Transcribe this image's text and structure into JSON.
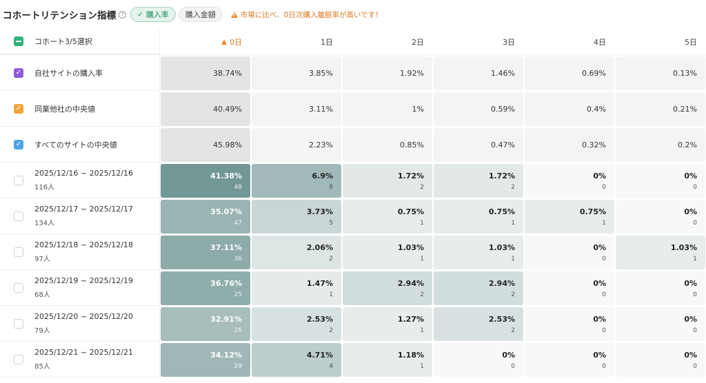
{
  "header": {
    "title": "コホートリテンション指標",
    "help_icon": "question-circle-icon",
    "tabs": [
      {
        "label": "購入率",
        "active": true,
        "icon": "check-icon"
      },
      {
        "label": "購入金額",
        "active": false
      }
    ],
    "warning": "市場に比べ、0日次購入離脱率が高いです！",
    "warning_icon": "warning-triangle-icon"
  },
  "table": {
    "select_label": "コホート3/5選択",
    "days": [
      "0日",
      "1日",
      "2日",
      "3日",
      "4日",
      "5日"
    ],
    "benchmarks": [
      {
        "label": "自社サイトの購入率",
        "checkbox_color": "#8f5cd6",
        "values": [
          "38.74%",
          "3.85%",
          "1.92%",
          "1.46%",
          "0.69%",
          "0.13%"
        ]
      },
      {
        "label": "同業他社の中央値",
        "checkbox_color": "#f0a63a",
        "values": [
          "40.49%",
          "3.11%",
          "1%",
          "0.59%",
          "0.4%",
          "0.21%"
        ]
      },
      {
        "label": "すべてのサイトの中央値",
        "checkbox_color": "#4ea4e6",
        "values": [
          "45.98%",
          "2.23%",
          "0.85%",
          "0.47%",
          "0.32%",
          "0.2%"
        ]
      }
    ],
    "cohorts": [
      {
        "range": "2025/12/16 ~ 2025/12/16",
        "users": "116人",
        "cells": [
          {
            "pct": "41.38%",
            "n": "48"
          },
          {
            "pct": "6.9%",
            "n": "8"
          },
          {
            "pct": "1.72%",
            "n": "2"
          },
          {
            "pct": "1.72%",
            "n": "2"
          },
          {
            "pct": "0%",
            "n": "0"
          },
          {
            "pct": "0%",
            "n": "0"
          }
        ]
      },
      {
        "range": "2025/12/17 ~ 2025/12/17",
        "users": "134人",
        "cells": [
          {
            "pct": "35.07%",
            "n": "47"
          },
          {
            "pct": "3.73%",
            "n": "5"
          },
          {
            "pct": "0.75%",
            "n": "1"
          },
          {
            "pct": "0.75%",
            "n": "1"
          },
          {
            "pct": "0.75%",
            "n": "1"
          },
          {
            "pct": "0%",
            "n": "0"
          }
        ]
      },
      {
        "range": "2025/12/18 ~ 2025/12/18",
        "users": "97人",
        "cells": [
          {
            "pct": "37.11%",
            "n": "36"
          },
          {
            "pct": "2.06%",
            "n": "2"
          },
          {
            "pct": "1.03%",
            "n": "1"
          },
          {
            "pct": "1.03%",
            "n": "1"
          },
          {
            "pct": "0%",
            "n": "0"
          },
          {
            "pct": "1.03%",
            "n": "1"
          }
        ]
      },
      {
        "range": "2025/12/19 ~ 2025/12/19",
        "users": "68人",
        "cells": [
          {
            "pct": "36.76%",
            "n": "25"
          },
          {
            "pct": "1.47%",
            "n": "1"
          },
          {
            "pct": "2.94%",
            "n": "2"
          },
          {
            "pct": "2.94%",
            "n": "2"
          },
          {
            "pct": "0%",
            "n": "0"
          },
          {
            "pct": "0%",
            "n": "0"
          }
        ]
      },
      {
        "range": "2025/12/20 ~ 2025/12/20",
        "users": "79人",
        "cells": [
          {
            "pct": "32.91%",
            "n": "26"
          },
          {
            "pct": "2.53%",
            "n": "2"
          },
          {
            "pct": "1.27%",
            "n": "1"
          },
          {
            "pct": "2.53%",
            "n": "2"
          },
          {
            "pct": "0%",
            "n": "0"
          },
          {
            "pct": "0%",
            "n": "0"
          }
        ]
      },
      {
        "range": "2025/12/21 ~ 2025/12/21",
        "users": "85人",
        "cells": [
          {
            "pct": "34.12%",
            "n": "29"
          },
          {
            "pct": "4.71%",
            "n": "4"
          },
          {
            "pct": "1.18%",
            "n": "1"
          },
          {
            "pct": "0%",
            "n": "0"
          },
          {
            "pct": "0%",
            "n": "0"
          },
          {
            "pct": "0%",
            "n": "0"
          }
        ]
      }
    ]
  },
  "colors": {
    "accent_green": "#2fb37b",
    "warning_orange": "#e0781f",
    "heat_max": "#6e9593",
    "heat_min": "#f7f8f8"
  }
}
